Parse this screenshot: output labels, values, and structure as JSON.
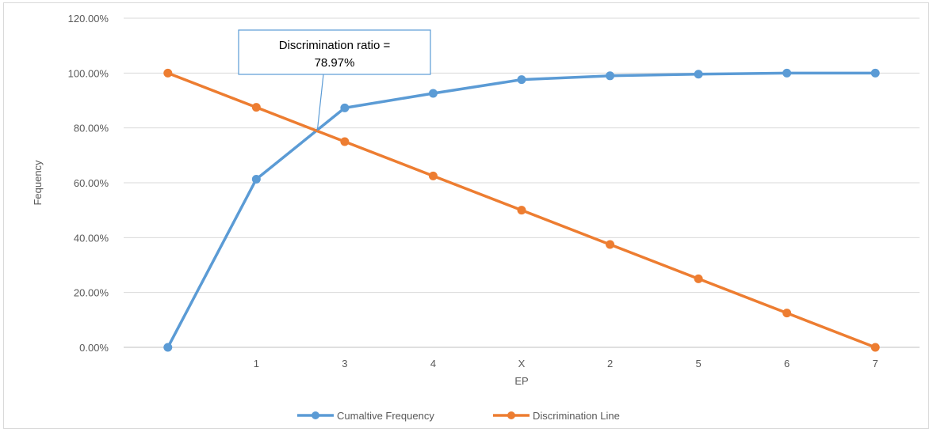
{
  "chart_data": {
    "type": "line",
    "categories": [
      "",
      "1",
      "3",
      "4",
      "X",
      "2",
      "5",
      "6",
      "7"
    ],
    "series": [
      {
        "name": "Cumaltive Frequency",
        "color": "#5b9bd5",
        "values": [
          0,
          61.3,
          87.3,
          92.6,
          97.6,
          99.0,
          99.6,
          100.0,
          100.0
        ]
      },
      {
        "name": "Discrimination Line",
        "color": "#ed7d31",
        "values": [
          100,
          87.5,
          75.0,
          62.5,
          50.0,
          37.5,
          25.0,
          12.5,
          0
        ]
      }
    ],
    "ylim": [
      0,
      120
    ],
    "ytick_labels": [
      "0.00%",
      "20.00%",
      "40.00%",
      "60.00%",
      "80.00%",
      "100.00%",
      "120.00%"
    ],
    "xlabel": "EP",
    "ylabel": "Fequency",
    "grid": true,
    "legend": "bottom",
    "annotation": {
      "line1": "Discrimination ratio =",
      "line2": "78.97%",
      "target": {
        "x_category_pos": 1.69,
        "y": 78.97
      }
    }
  }
}
